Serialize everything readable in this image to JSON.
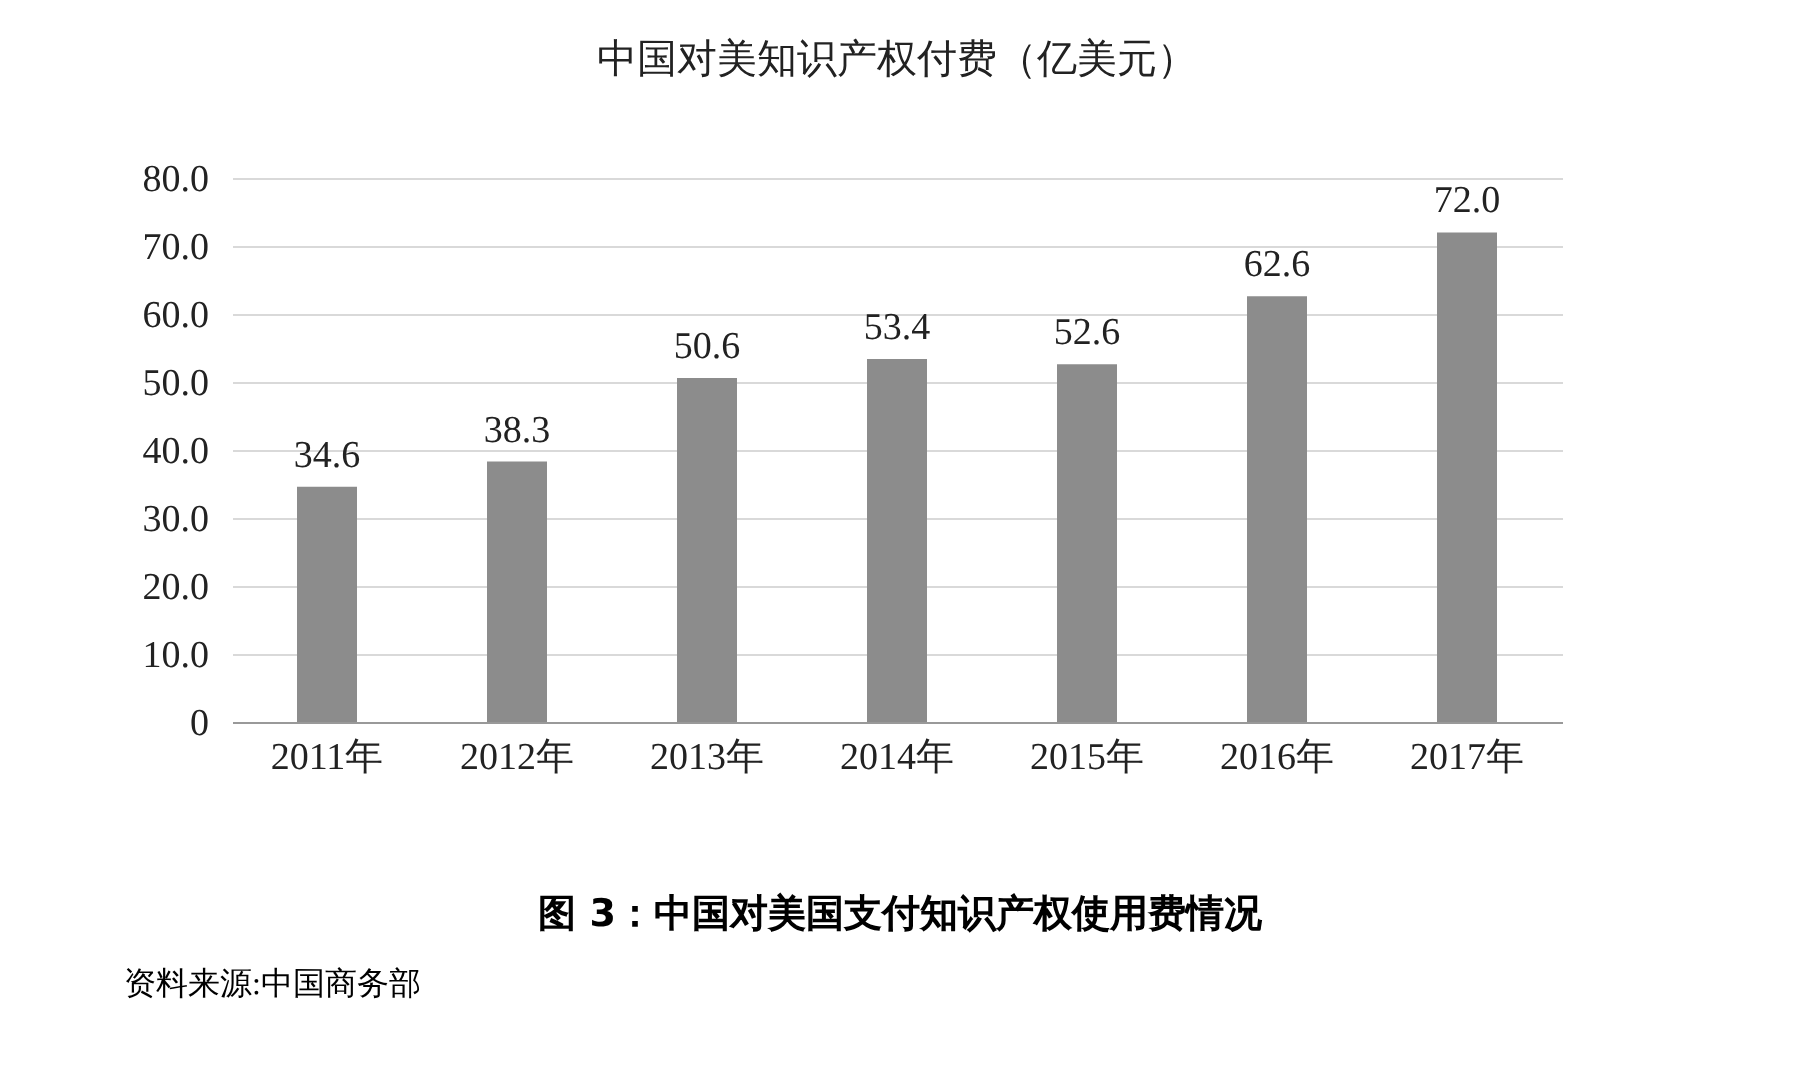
{
  "chart_data": {
    "type": "bar",
    "title": "中国对美知识产权付费（亿美元）",
    "categories": [
      "2011年",
      "2012年",
      "2013年",
      "2014年",
      "2015年",
      "2016年",
      "2017年"
    ],
    "values": [
      34.6,
      38.3,
      50.6,
      53.4,
      52.6,
      62.6,
      72.0
    ],
    "value_labels": [
      "34.6",
      "38.3",
      "50.6",
      "53.4",
      "52.6",
      "62.6",
      "72.0"
    ],
    "color": "#8c8c8c",
    "ylim": [
      0,
      80
    ],
    "yticks": [
      {
        "value": 0,
        "label": "0"
      },
      {
        "value": 10,
        "label": "10.0"
      },
      {
        "value": 20,
        "label": "20.0"
      },
      {
        "value": 30,
        "label": "30.0"
      },
      {
        "value": 40,
        "label": "40.0"
      },
      {
        "value": 50,
        "label": "50.0"
      },
      {
        "value": 60,
        "label": "60.0"
      },
      {
        "value": 70,
        "label": "70.0"
      },
      {
        "value": 80,
        "label": "80.0"
      }
    ],
    "grid": "y",
    "annotations": [
      "图 3：中国对美国支付知识产权使用费情况",
      "资料来源:中国商务部"
    ]
  }
}
